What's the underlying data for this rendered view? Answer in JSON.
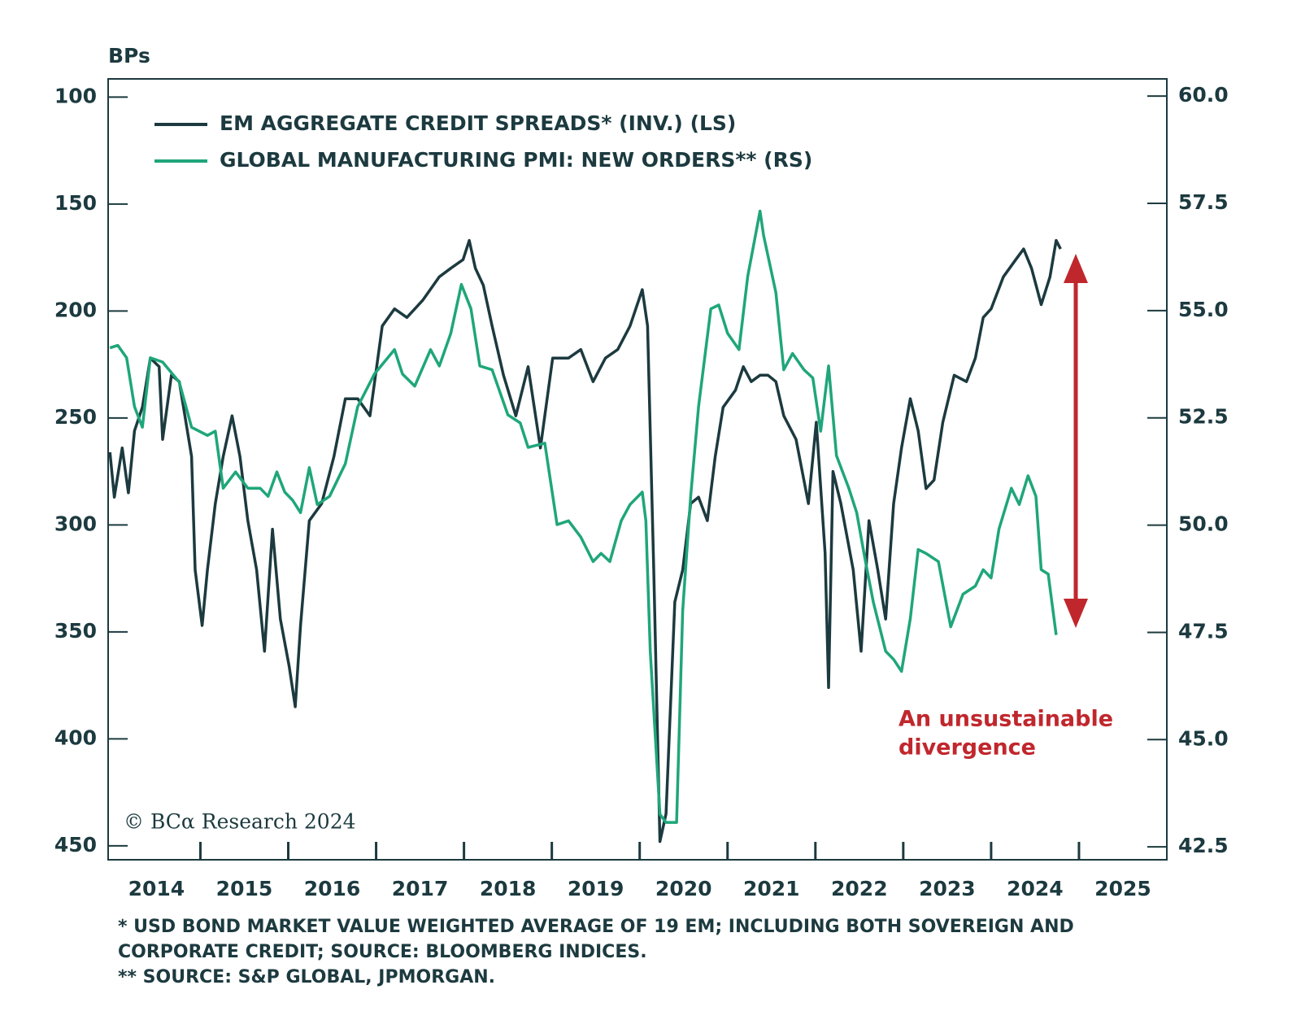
{
  "chart_data": {
    "type": "line",
    "y_label": "BPs",
    "annotation": [
      "An unsustainable",
      "divergence"
    ],
    "copyright": "© BCα Research 2024",
    "footnotes": [
      "* USD BOND MARKET VALUE WEIGHTED AVERAGE OF 19 EM; INCLUDING BOTH SOVEREIGN AND",
      "CORPORATE CREDIT; SOURCE: BLOOMBERG INDICES.",
      "** SOURCE: S&P GLOBAL, JPMORGAN."
    ],
    "xlim": [
      2013.95,
      2026.0
    ],
    "xticks": [
      2015,
      2016,
      2017,
      2018,
      2019,
      2020,
      2021,
      2022,
      2023,
      2024,
      2025
    ],
    "xlabels": [
      {
        "value": 2014.5,
        "label": "2014"
      },
      {
        "value": 2015.5,
        "label": "2015"
      },
      {
        "value": 2016.5,
        "label": "2016"
      },
      {
        "value": 2017.5,
        "label": "2017"
      },
      {
        "value": 2018.5,
        "label": "2018"
      },
      {
        "value": 2019.5,
        "label": "2019"
      },
      {
        "value": 2020.5,
        "label": "2020"
      },
      {
        "value": 2021.5,
        "label": "2021"
      },
      {
        "value": 2022.5,
        "label": "2022"
      },
      {
        "value": 2023.5,
        "label": "2023"
      },
      {
        "value": 2024.5,
        "label": "2024"
      },
      {
        "value": 2025.5,
        "label": "2025"
      }
    ],
    "ylim": [
      456.5,
      91.5
    ],
    "yticks": [
      100,
      150,
      200,
      250,
      300,
      350,
      400,
      450
    ],
    "y2lim": [
      42.2,
      60.4
    ],
    "y2ticks": [
      {
        "value": 60,
        "label": "60.0"
      },
      57.5,
      {
        "value": 55,
        "label": "55.0"
      },
      52.5,
      {
        "value": 50,
        "label": "50.0"
      },
      47.5,
      {
        "value": 45,
        "label": "45.0"
      },
      42.5
    ],
    "grid": false,
    "series": [
      {
        "name": "EM AGGREGATE CREDIT SPREADS* (INV.) (LS)",
        "color": "#1c3a3f",
        "axis": "y",
        "x": [
          2013.97,
          2014.02,
          2014.11,
          2014.18,
          2014.25,
          2014.34,
          2014.43,
          2014.53,
          2014.57,
          2014.67,
          2014.76,
          2014.9,
          2014.94,
          2015.02,
          2015.08,
          2015.17,
          2015.26,
          2015.36,
          2015.45,
          2015.54,
          2015.64,
          2015.73,
          2015.82,
          2015.91,
          2016.01,
          2016.08,
          2016.14,
          2016.24,
          2016.38,
          2016.52,
          2016.65,
          2016.79,
          2016.93,
          2017.07,
          2017.21,
          2017.35,
          2017.53,
          2017.72,
          2017.85,
          2017.99,
          2018.06,
          2018.13,
          2018.22,
          2018.32,
          2018.45,
          2018.59,
          2018.73,
          2018.87,
          2019.01,
          2019.19,
          2019.33,
          2019.47,
          2019.61,
          2019.75,
          2019.89,
          2020.03,
          2020.09,
          2020.16,
          2020.23,
          2020.3,
          2020.4,
          2020.49,
          2020.58,
          2020.67,
          2020.77,
          2020.86,
          2020.95,
          2021.09,
          2021.18,
          2021.27,
          2021.37,
          2021.46,
          2021.55,
          2021.64,
          2021.78,
          2021.92,
          2022.01,
          2022.11,
          2022.15,
          2022.2,
          2022.29,
          2022.43,
          2022.52,
          2022.61,
          2022.71,
          2022.8,
          2022.89,
          2022.98,
          2023.08,
          2023.17,
          2023.26,
          2023.35,
          2023.45,
          2023.58,
          2023.72,
          2023.82,
          2023.91,
          2024.0,
          2024.14,
          2024.28,
          2024.37,
          2024.46,
          2024.57,
          2024.67,
          2024.74,
          2024.79
        ],
        "values": [
          266,
          287,
          264,
          285,
          256,
          245,
          222,
          226,
          260,
          230,
          233,
          268,
          321,
          347,
          321,
          290,
          268,
          249,
          268,
          298,
          321,
          359,
          302,
          344,
          366,
          385,
          347,
          298,
          290,
          268,
          241,
          241,
          249,
          207,
          199,
          203,
          195,
          184,
          180,
          176,
          167,
          180,
          188,
          207,
          230,
          249,
          226,
          264,
          222,
          222,
          218,
          233,
          222,
          218,
          207,
          190,
          207,
          321,
          448,
          435,
          336,
          321,
          290,
          287,
          298,
          268,
          245,
          237,
          226,
          233,
          230,
          230,
          233,
          249,
          260,
          290,
          252,
          313,
          376,
          275,
          290,
          321,
          359,
          298,
          321,
          344,
          290,
          264,
          241,
          256,
          283,
          279,
          252,
          230,
          233,
          222,
          203,
          199,
          184,
          176,
          171,
          180,
          197,
          184,
          167,
          171
        ]
      },
      {
        "name": "GLOBAL MANUFACTURING PMI: NEW ORDERS**  (RS)",
        "color": "#1fa67a",
        "axis": "y2",
        "x": [
          2013.97,
          2014.06,
          2014.16,
          2014.25,
          2014.34,
          2014.43,
          2014.57,
          2014.76,
          2014.9,
          2015.08,
          2015.17,
          2015.26,
          2015.4,
          2015.54,
          2015.68,
          2015.77,
          2015.87,
          2015.96,
          2016.05,
          2016.14,
          2016.24,
          2016.33,
          2016.47,
          2016.56,
          2016.65,
          2016.79,
          2016.98,
          2017.21,
          2017.3,
          2017.44,
          2017.62,
          2017.72,
          2017.85,
          2017.97,
          2018.08,
          2018.18,
          2018.32,
          2018.5,
          2018.64,
          2018.73,
          2018.92,
          2019.06,
          2019.19,
          2019.33,
          2019.47,
          2019.56,
          2019.66,
          2019.79,
          2019.89,
          2020.03,
          2020.07,
          2020.12,
          2020.23,
          2020.3,
          2020.42,
          2020.49,
          2020.58,
          2020.67,
          2020.81,
          2020.9,
          2021.0,
          2021.13,
          2021.23,
          2021.37,
          2021.41,
          2021.55,
          2021.64,
          2021.74,
          2021.87,
          2021.97,
          2022.06,
          2022.15,
          2022.24,
          2022.38,
          2022.47,
          2022.57,
          2022.66,
          2022.8,
          2022.89,
          2022.98,
          2023.08,
          2023.17,
          2023.26,
          2023.4,
          2023.54,
          2023.68,
          2023.82,
          2023.91,
          2024.0,
          2024.09,
          2024.23,
          2024.32,
          2024.42,
          2024.51,
          2024.57,
          2024.65,
          2024.74
        ],
        "values": [
          54.13,
          54.19,
          53.9,
          52.76,
          52.28,
          53.9,
          53.8,
          53.33,
          52.28,
          52.09,
          52.19,
          50.86,
          51.24,
          50.86,
          50.86,
          50.67,
          51.24,
          50.77,
          50.58,
          50.29,
          51.34,
          50.48,
          50.67,
          51.05,
          51.43,
          52.76,
          53.52,
          54.09,
          53.52,
          53.24,
          54.09,
          53.71,
          54.47,
          55.61,
          55.04,
          53.71,
          53.62,
          52.57,
          52.38,
          51.81,
          51.91,
          50.01,
          50.1,
          49.72,
          49.15,
          49.34,
          49.15,
          50.1,
          50.48,
          50.77,
          50.1,
          47.06,
          43.26,
          43.07,
          43.07,
          48.01,
          50.67,
          52.76,
          55.04,
          55.13,
          54.47,
          54.09,
          55.8,
          57.32,
          56.75,
          55.42,
          53.62,
          54.0,
          53.62,
          53.43,
          52.19,
          53.71,
          51.62,
          50.86,
          50.29,
          49.15,
          48.2,
          47.06,
          46.87,
          46.59,
          47.82,
          49.43,
          49.34,
          49.15,
          47.63,
          48.39,
          48.58,
          48.96,
          48.77,
          49.91,
          50.86,
          50.48,
          51.15,
          50.67,
          48.96,
          48.86,
          47.44
        ]
      }
    ]
  }
}
